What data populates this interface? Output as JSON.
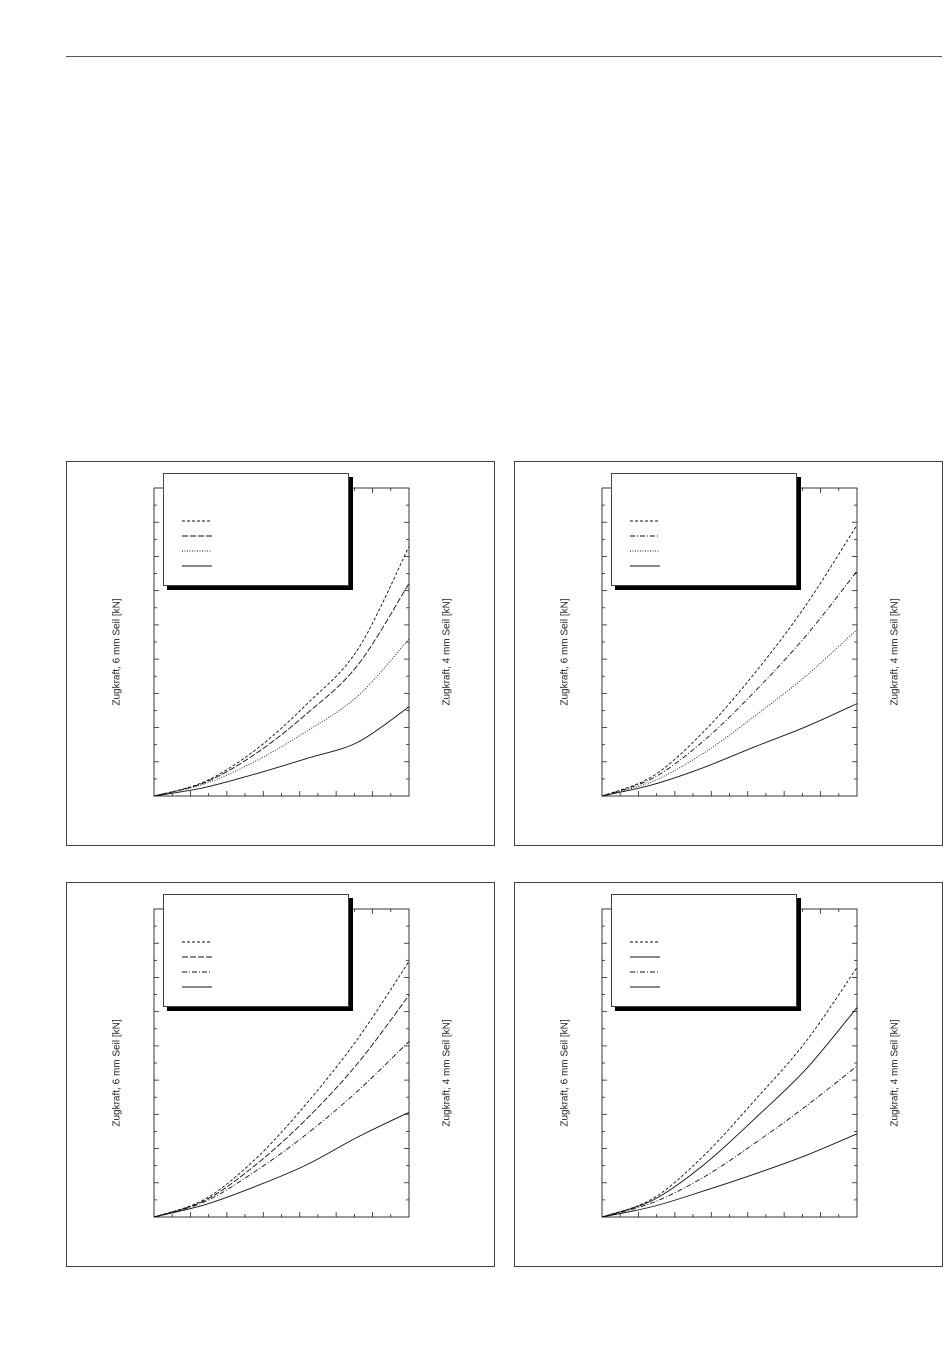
{
  "page": {
    "rule_color": "#555555"
  },
  "chart_data": [
    {
      "type": "line",
      "ylabel_left": "Zugkraft, 6 mm Seil [kN]",
      "ylabel_right": "Zugkraft, 4 mm Seil [kN]",
      "xlim": [
        0,
        1
      ],
      "ylim": [
        0,
        1
      ],
      "grid": false,
      "legend": "top-left",
      "series": [
        {
          "style": "dashed-short",
          "x": [
            0,
            0.2,
            0.4,
            0.6,
            0.8,
            1.0
          ],
          "values": [
            0,
            0.047,
            0.151,
            0.299,
            0.477,
            0.81
          ]
        },
        {
          "style": "dashed-long",
          "x": [
            0,
            0.2,
            0.4,
            0.6,
            0.8,
            1.0
          ],
          "values": [
            0,
            0.044,
            0.138,
            0.268,
            0.426,
            0.69
          ]
        },
        {
          "style": "dotted",
          "x": [
            0,
            0.2,
            0.4,
            0.6,
            0.8,
            1.0
          ],
          "values": [
            0,
            0.04,
            0.114,
            0.211,
            0.325,
            0.51
          ]
        },
        {
          "style": "solid",
          "x": [
            0,
            0.2,
            0.4,
            0.6,
            0.8,
            1.0
          ],
          "values": [
            0,
            0.028,
            0.072,
            0.122,
            0.175,
            0.29
          ]
        }
      ]
    },
    {
      "type": "line",
      "ylabel_left": "Zugkraft, 6 mm Seil [kN]",
      "ylabel_right": "Zugkraft, 4 mm Seil [kN]",
      "xlim": [
        0,
        1
      ],
      "ylim": [
        0,
        1
      ],
      "grid": false,
      "legend": "top-left",
      "series": [
        {
          "style": "dashed-short",
          "x": [
            0,
            0.2,
            0.4,
            0.6,
            0.8,
            1.0
          ],
          "values": [
            0,
            0.065,
            0.21,
            0.4,
            0.62,
            0.88
          ]
        },
        {
          "style": "dash-dot",
          "x": [
            0,
            0.2,
            0.4,
            0.6,
            0.8,
            1.0
          ],
          "values": [
            0,
            0.058,
            0.18,
            0.34,
            0.52,
            0.73
          ]
        },
        {
          "style": "dotted",
          "x": [
            0,
            0.2,
            0.4,
            0.6,
            0.8,
            1.0
          ],
          "values": [
            0,
            0.048,
            0.14,
            0.26,
            0.39,
            0.54
          ]
        },
        {
          "style": "solid",
          "x": [
            0,
            0.2,
            0.4,
            0.6,
            0.8,
            1.0
          ],
          "values": [
            0,
            0.037,
            0.093,
            0.16,
            0.225,
            0.3
          ]
        }
      ]
    },
    {
      "type": "line",
      "ylabel_left": "Zugkraft, 6 mm Seil [kN]",
      "ylabel_right": "Zugkraft, 4 mm Seil [kN]",
      "xlim": [
        0,
        1
      ],
      "ylim": [
        0,
        1
      ],
      "grid": false,
      "legend": "top-left",
      "series": [
        {
          "style": "dashed-short",
          "x": [
            0,
            0.2,
            0.4,
            0.6,
            0.8,
            1.0
          ],
          "values": [
            0,
            0.058,
            0.19,
            0.37,
            0.58,
            0.83
          ]
        },
        {
          "style": "dashed-long",
          "x": [
            0,
            0.2,
            0.4,
            0.6,
            0.8,
            1.0
          ],
          "values": [
            0,
            0.054,
            0.17,
            0.32,
            0.5,
            0.72
          ]
        },
        {
          "style": "dash-dot",
          "x": [
            0,
            0.2,
            0.4,
            0.6,
            0.8,
            1.0
          ],
          "values": [
            0,
            0.05,
            0.15,
            0.27,
            0.41,
            0.57
          ]
        },
        {
          "style": "solid",
          "x": [
            0,
            0.2,
            0.4,
            0.6,
            0.8,
            1.0
          ],
          "values": [
            0,
            0.04,
            0.1,
            0.17,
            0.26,
            0.34
          ]
        }
      ]
    },
    {
      "type": "line",
      "ylabel_left": "Zugkraft, 6 mm Seil [kN]",
      "ylabel_right": "Zugkraft, 4 mm Seil [kN]",
      "xlim": [
        0,
        1
      ],
      "ylim": [
        0,
        1
      ],
      "grid": false,
      "legend": "top-left",
      "series": [
        {
          "style": "dashed-short",
          "x": [
            0,
            0.2,
            0.4,
            0.6,
            0.8,
            1.0
          ],
          "values": [
            0,
            0.06,
            0.2,
            0.38,
            0.57,
            0.81
          ]
        },
        {
          "style": "solid",
          "x": [
            0,
            0.2,
            0.4,
            0.6,
            0.8,
            1.0
          ],
          "values": [
            0,
            0.055,
            0.17,
            0.32,
            0.48,
            0.68
          ]
        },
        {
          "style": "dash-dot",
          "x": [
            0,
            0.2,
            0.4,
            0.6,
            0.8,
            1.0
          ],
          "values": [
            0,
            0.047,
            0.13,
            0.24,
            0.36,
            0.49
          ]
        },
        {
          "style": "solid",
          "x": [
            0,
            0.2,
            0.4,
            0.6,
            0.8,
            1.0
          ],
          "values": [
            0,
            0.034,
            0.085,
            0.14,
            0.2,
            0.27
          ]
        }
      ]
    }
  ]
}
